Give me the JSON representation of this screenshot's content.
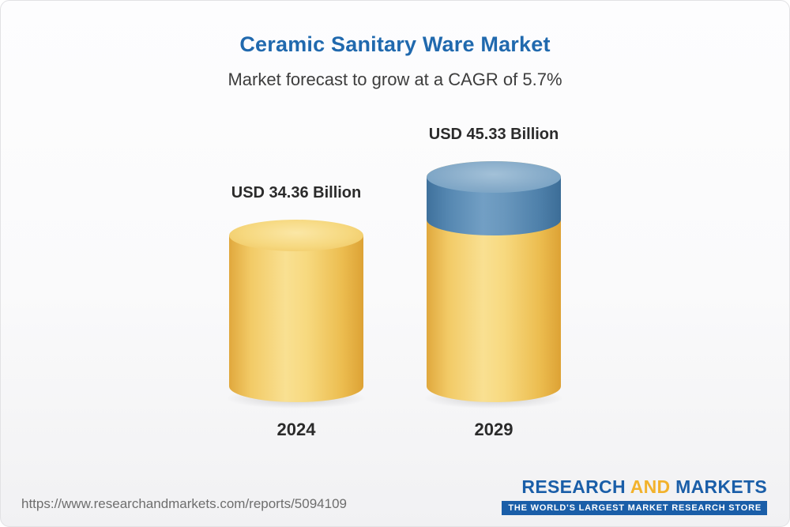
{
  "header": {
    "title": "Ceramic Sanitary Ware Market",
    "subtitle": "Market forecast to grow at a CAGR of 5.7%"
  },
  "chart_data": {
    "type": "bar",
    "title": "Ceramic Sanitary Ware Market",
    "subtitle": "Market forecast to grow at a CAGR of 5.7%",
    "cagr_percent": 5.7,
    "unit": "USD Billion",
    "categories": [
      "2024",
      "2029"
    ],
    "values": [
      34.36,
      45.33
    ],
    "value_labels": [
      "USD 34.36 Billion",
      "USD 45.33 Billion"
    ],
    "ylim": [
      0,
      45.33
    ],
    "legend": "none",
    "grid": false,
    "colors": {
      "bar_base": "#F4CE68",
      "bar_growth_segment": "#5D8FB9",
      "title": "#2069AE"
    }
  },
  "footer": {
    "url": "https://www.researchandmarkets.com/reports/5094109",
    "logo": {
      "word1": "RESEARCH",
      "word2": "AND",
      "word3": "MARKETS",
      "tagline": "THE WORLD'S LARGEST MARKET RESEARCH STORE"
    }
  }
}
